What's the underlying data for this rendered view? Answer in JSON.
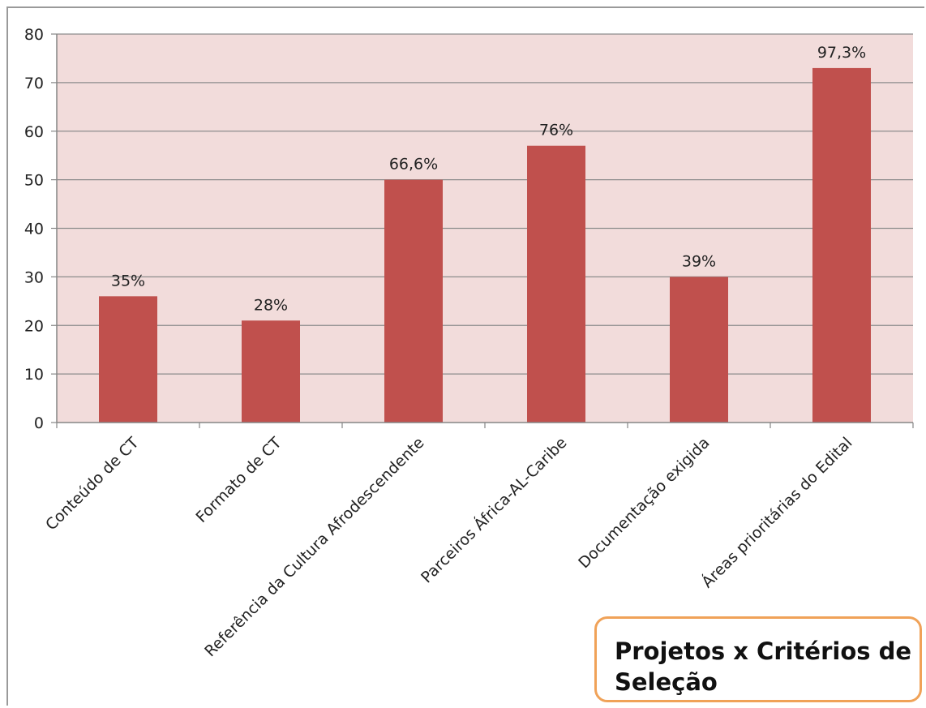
{
  "chart_data": {
    "type": "bar",
    "title": "Projetos x Critérios de Seleção",
    "categories": [
      "Conteúdo de CT",
      "Formato de CT",
      "Referência da Cultura Afrodescendente",
      "Parceiros África-AL-Caribe",
      "Documentação exigida",
      "Áreas prioritárias do Edital"
    ],
    "values": [
      26,
      21,
      50,
      57,
      30,
      73
    ],
    "data_labels": [
      "35%",
      "28%",
      "66,6%",
      "76%",
      "39%",
      "97,3%"
    ],
    "ylim": [
      0,
      80
    ],
    "yticks": [
      0,
      10,
      20,
      30,
      40,
      50,
      60,
      70,
      80
    ],
    "grid": true,
    "legend": "none",
    "colors": {
      "bar": "#c0504d",
      "plot_background": "#f2dcdb",
      "gridline": "#8c8c8c",
      "title_border": "#f0a258"
    }
  }
}
